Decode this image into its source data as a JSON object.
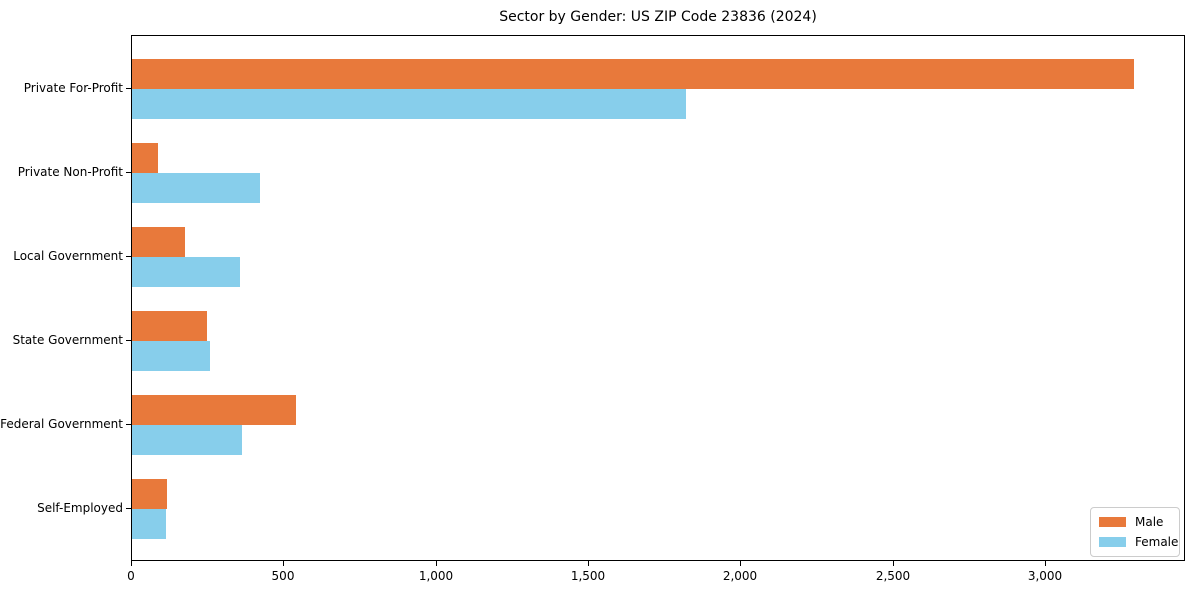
{
  "chart_data": {
    "type": "bar",
    "orientation": "horizontal",
    "title": "Sector by Gender: US ZIP Code 23836 (2024)",
    "categories": [
      "Private For-Profit",
      "Private Non-Profit",
      "Local Government",
      "State Government",
      "Federal Government",
      "Self-Employed"
    ],
    "series": [
      {
        "name": "Male",
        "color": "#E8793B",
        "values": [
          3290,
          85,
          175,
          245,
          540,
          115
        ]
      },
      {
        "name": "Female",
        "color": "#87CEEB",
        "values": [
          1820,
          420,
          355,
          255,
          360,
          110
        ]
      }
    ],
    "xlabel": "",
    "ylabel": "",
    "xlim": [
      0,
      3460
    ],
    "x_ticks": [
      0,
      500,
      1000,
      1500,
      2000,
      2500,
      3000
    ],
    "x_tick_labels": [
      "0",
      "500",
      "1,000",
      "1,500",
      "2,000",
      "2,500",
      "3,000"
    ],
    "grid": false,
    "legend": {
      "position": "lower right",
      "entries": [
        "Male",
        "Female"
      ]
    }
  }
}
